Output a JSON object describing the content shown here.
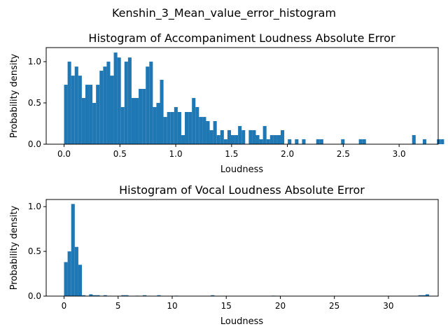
{
  "suptitle": "Kenshin_3_Mean_value_error_histogram",
  "bar_color": "#1f77b4",
  "chart_data": [
    {
      "type": "bar",
      "title": "Histogram of Accompaniment Loudness Absolute Error",
      "xlabel": "Loudness",
      "ylabel": "Probability density",
      "xlim": [
        -0.16,
        3.35
      ],
      "ylim": [
        0,
        1.17
      ],
      "xticks": [
        0.0,
        0.5,
        1.0,
        1.5,
        2.0,
        2.5,
        3.0
      ],
      "xtick_labels": [
        "0.0",
        "0.5",
        "1.0",
        "1.5",
        "2.0",
        "2.5",
        "3.0"
      ],
      "yticks": [
        0.0,
        0.5,
        1.0
      ],
      "ytick_labels": [
        "0.0",
        "0.5",
        "1.0"
      ],
      "bin_start": 0.0,
      "bin_width": 0.0318,
      "values": [
        0.72,
        1.0,
        0.83,
        0.94,
        0.83,
        0.56,
        0.72,
        0.72,
        0.5,
        0.72,
        0.89,
        0.94,
        1.0,
        0.83,
        1.11,
        1.05,
        0.45,
        1.0,
        1.05,
        0.56,
        0.56,
        0.67,
        0.67,
        0.94,
        1.0,
        0.45,
        0.5,
        0.78,
        0.33,
        0.39,
        0.39,
        0.45,
        0.39,
        0.11,
        0.39,
        0.39,
        0.56,
        0.45,
        0.33,
        0.33,
        0.28,
        0.17,
        0.28,
        0.11,
        0.17,
        0.06,
        0.17,
        0.11,
        0.11,
        0.22,
        0.17,
        0.0,
        0.17,
        0.17,
        0.11,
        0.06,
        0.22,
        0.06,
        0.11,
        0.11,
        0.11,
        0.17,
        0.0,
        0.06,
        0.0,
        0.06,
        0.0,
        0.06,
        0.0,
        0.0,
        0.0,
        0.06,
        0.06,
        0.0,
        0.0,
        0.0,
        0.0,
        0.0,
        0.06,
        0.0,
        0.0,
        0.0,
        0.0,
        0.06,
        0.06,
        0.0,
        0.0,
        0.0,
        0.0,
        0.0,
        0.0,
        0.0,
        0.0,
        0.0,
        0.0,
        0.0,
        0.0,
        0.0,
        0.11,
        0.0,
        0.0,
        0.06,
        0.0,
        0.0,
        0.0,
        0.06,
        0.06,
        0.0,
        0.0,
        0.0,
        0.0,
        0.0,
        0.0,
        0.0,
        0.0,
        0.06,
        0.06,
        0.06,
        0.06,
        0.0,
        0.0,
        0.0,
        0.0,
        0.0,
        0.0,
        0.0,
        0.0,
        0.0,
        0.0,
        0.0,
        0.0,
        0.0,
        0.0,
        0.0,
        0.0,
        0.0,
        0.0,
        0.0,
        0.0
      ]
    },
    {
      "type": "bar",
      "title": "Histogram of Vocal Loudness Absolute Error",
      "xlabel": "Loudness",
      "ylabel": "Probability density",
      "xlim": [
        -1.65,
        34.6
      ],
      "ylim": [
        0,
        1.08
      ],
      "xticks": [
        0,
        5,
        10,
        15,
        20,
        25,
        30
      ],
      "xtick_labels": [
        "0",
        "5",
        "10",
        "15",
        "20",
        "25",
        "30"
      ],
      "yticks": [
        0.0,
        0.5,
        1.0
      ],
      "ytick_labels": [
        "0.0",
        "0.5",
        "1.0"
      ],
      "bin_start": 0.0,
      "bin_width": 0.331,
      "values": [
        0.38,
        0.5,
        1.03,
        0.55,
        0.35,
        0.01,
        0.0,
        0.02,
        0.01,
        0.01,
        0.0,
        0.01,
        0.0,
        0.0,
        0.0,
        0.0,
        0.01,
        0.01,
        0.0,
        0.0,
        0.005,
        0.0,
        0.01,
        0.0,
        0.0,
        0.0,
        0.01,
        0.0,
        0.0,
        0.0,
        0.0,
        0.005,
        0.0,
        0.0,
        0.0,
        0.0,
        0.0,
        0.0,
        0.0,
        0.0,
        0.0,
        0.01,
        0.0,
        0.0,
        0.0,
        0.0,
        0.0,
        0.0,
        0.0,
        0.0,
        0.0,
        0.0,
        0.0,
        0.0,
        0.0,
        0.0,
        0.0,
        0.0,
        0.005,
        0.0,
        0.0,
        0.0,
        0.0,
        0.0,
        0.0,
        0.0,
        0.0,
        0.0,
        0.0,
        0.0,
        0.0,
        0.0,
        0.0,
        0.0,
        0.0,
        0.0,
        0.0,
        0.0,
        0.0,
        0.0,
        0.0,
        0.0,
        0.0,
        0.0,
        0.0,
        0.0,
        0.0,
        0.0,
        0.0,
        0.0,
        0.0,
        0.0,
        0.0,
        0.0,
        0.0,
        0.0,
        0.0,
        0.0,
        0.0,
        0.01,
        0.01,
        0.02
      ]
    }
  ]
}
